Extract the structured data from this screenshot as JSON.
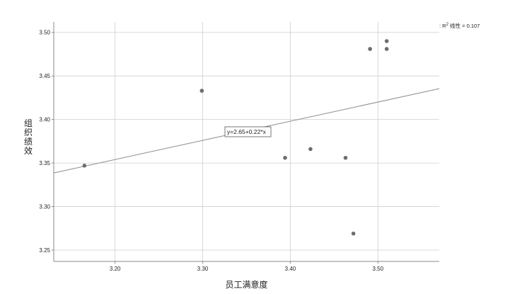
{
  "chart_data": {
    "type": "scatter",
    "xlabel": "员工满意度",
    "ylabel": "组织绩效",
    "xlim": [
      3.13,
      3.57
    ],
    "ylim": [
      3.237,
      3.512
    ],
    "x_ticks": [
      3.2,
      3.3,
      3.4,
      3.5
    ],
    "y_ticks": [
      3.25,
      3.3,
      3.35,
      3.4,
      3.45,
      3.5
    ],
    "x_tick_labels": [
      "3.20",
      "3.30",
      "3.40",
      "3.50"
    ],
    "y_tick_labels": [
      "3.25",
      "3.30",
      "3.35",
      "3.40",
      "3.45",
      "3.50"
    ],
    "grid": true,
    "points": [
      {
        "x": 3.165,
        "y": 3.347
      },
      {
        "x": 3.299,
        "y": 3.433
      },
      {
        "x": 3.394,
        "y": 3.356
      },
      {
        "x": 3.423,
        "y": 3.366
      },
      {
        "x": 3.463,
        "y": 3.356
      },
      {
        "x": 3.472,
        "y": 3.269
      },
      {
        "x": 3.491,
        "y": 3.481
      },
      {
        "x": 3.51,
        "y": 3.49
      },
      {
        "x": 3.51,
        "y": 3.481
      }
    ],
    "fit_line": {
      "intercept": 2.65,
      "slope": 0.22,
      "label": "y=2.65+0.22*x"
    },
    "legend": {
      "text_prefix": ": R",
      "superscript": "2",
      "text_suffix": " 线性 = 0.107",
      "placement": "top-right"
    },
    "colors": {
      "point": "#6d6d6d",
      "fit_line": "#8c8c8c",
      "grid": "#cfcfcf",
      "axis": "#888888"
    }
  }
}
